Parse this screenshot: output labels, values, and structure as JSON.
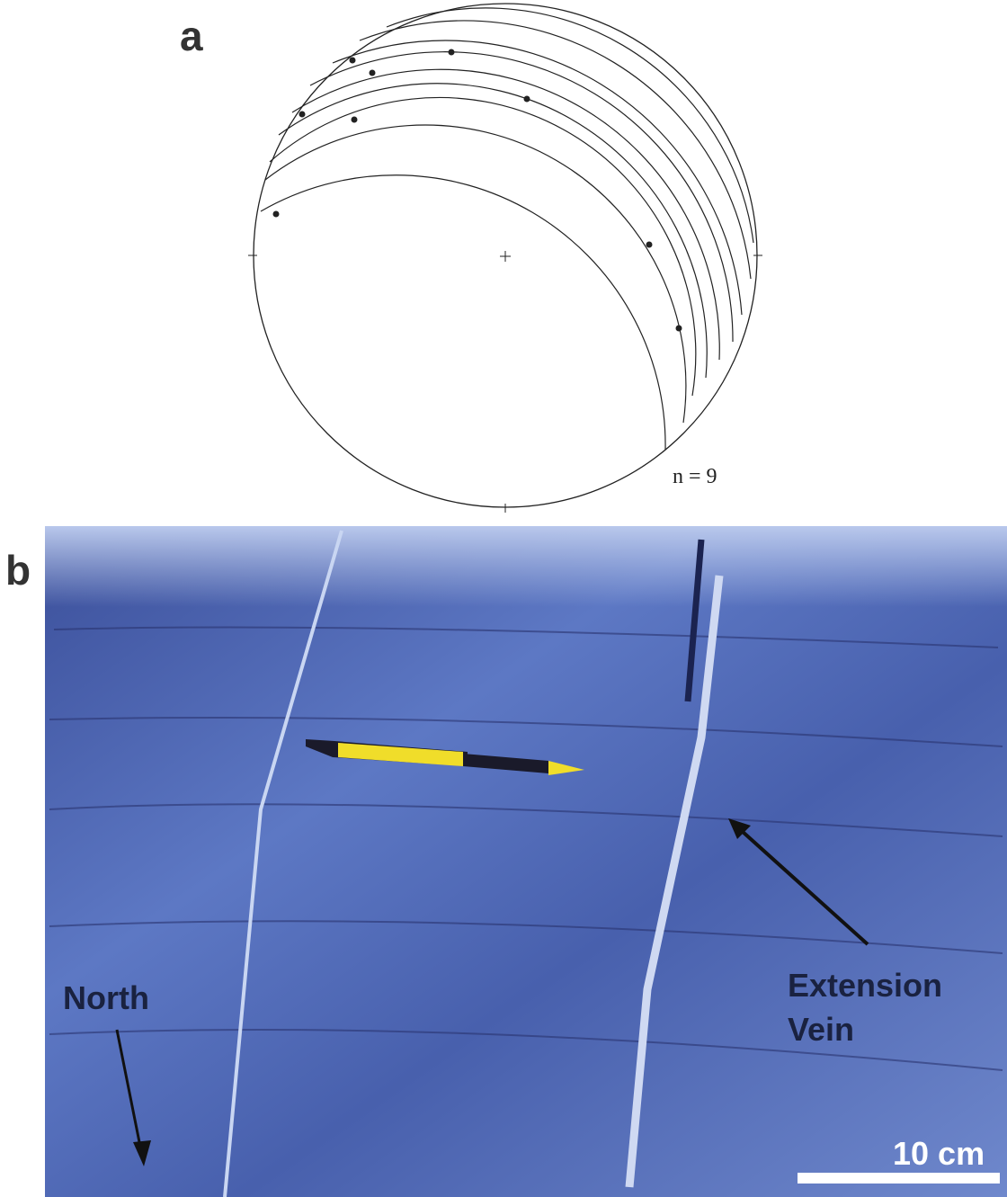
{
  "panel_a": {
    "label": "a",
    "count": "n = 9"
  },
  "panel_b": {
    "label": "b",
    "north": "North",
    "vein_line1": "Extension",
    "vein_line2": "Vein",
    "scale": "10 cm"
  }
}
